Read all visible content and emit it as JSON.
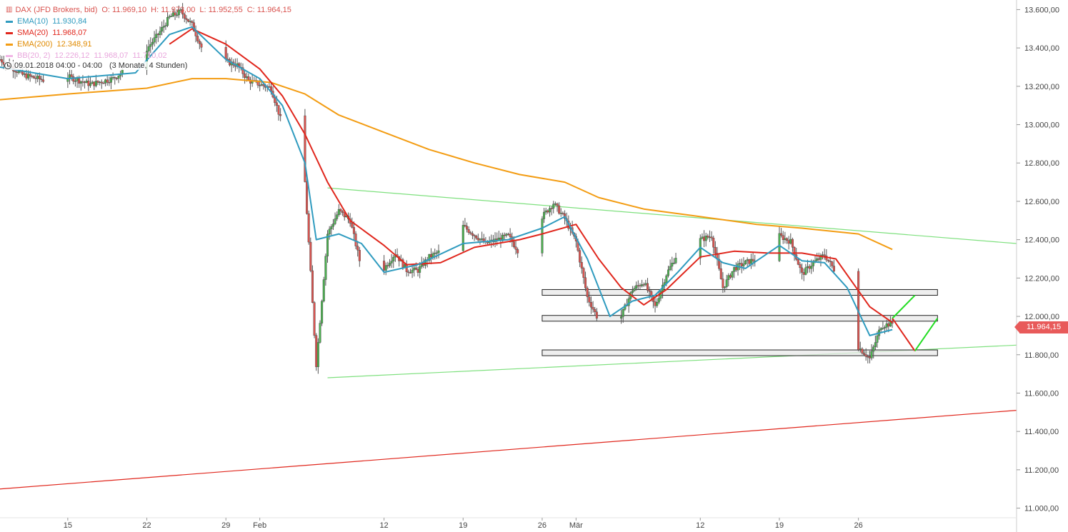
{
  "header": {
    "title": "DAX (JFD Brokers, bid)",
    "open": "O: 11.969,10",
    "high": "H: 11.973,00",
    "low": "L: 11.952,55",
    "close": "C: 11.964,15"
  },
  "indicators": [
    {
      "label": "EMA(10)",
      "value": "11.930,84",
      "color": "#2f9bbf"
    },
    {
      "label": "SMA(20)",
      "value": "11.968,07",
      "color": "#e0261c"
    },
    {
      "label": "EMA(200)",
      "value": "12.348,91",
      "color": "#f39c12"
    },
    {
      "label": "BB(20, 2)",
      "value": "12.226,12",
      "value2": "11.968,07",
      "value3": "11.710,02",
      "color": "#f2b6e6"
    }
  ],
  "period": {
    "date": "09.01.2018 04:00 - 04:00",
    "range": "(3 Monate, 4 Stunden)"
  },
  "current_price": "11.964,15",
  "chart_data": {
    "type": "candlestick",
    "y_axis": {
      "ylim": [
        10950,
        13650
      ],
      "ticks": [
        11000,
        11200,
        11400,
        11600,
        11800,
        12000,
        12200,
        12400,
        12600,
        12800,
        13000,
        13200,
        13400,
        13600
      ],
      "tick_labels": [
        "11.000,00",
        "11.200,00",
        "11.400,00",
        "11.600,00",
        "11.800,00",
        "12.000,00",
        "12.200,00",
        "12.400,00",
        "12.600,00",
        "12.800,00",
        "13.000,00",
        "13.200,00",
        "13.400,00",
        "13.600,00"
      ]
    },
    "x_axis": {
      "range": [
        "2018-01-09",
        "2018-04-09"
      ],
      "ticks": [
        "2018-01-15",
        "2018-01-22",
        "2018-01-29",
        "2018-02-01",
        "2018-02-12",
        "2018-02-19",
        "2018-02-26",
        "2018-03-01",
        "2018-03-12",
        "2018-03-19",
        "2018-03-26"
      ],
      "tick_labels": [
        "15",
        "22",
        "29",
        "Feb",
        "12",
        "19",
        "26",
        "Mär",
        "12",
        "19",
        "26"
      ]
    },
    "price_path": [
      [
        "2018-01-09",
        13340
      ],
      [
        "2018-01-11",
        13260
      ],
      [
        "2018-01-13",
        13230
      ],
      [
        "2018-01-15",
        13250
      ],
      [
        "2018-01-17",
        13210
      ],
      [
        "2018-01-19",
        13240
      ],
      [
        "2018-01-21",
        13320
      ],
      [
        "2018-01-23",
        13470
      ],
      [
        "2018-01-24",
        13560
      ],
      [
        "2018-01-25",
        13590
      ],
      [
        "2018-01-26",
        13520
      ],
      [
        "2018-01-27",
        13380
      ],
      [
        "2018-01-29",
        13330
      ],
      [
        "2018-01-30",
        13310
      ],
      [
        "2018-01-31",
        13230
      ],
      [
        "2018-02-01",
        13210
      ],
      [
        "2018-02-02",
        13190
      ],
      [
        "2018-02-03",
        13000
      ],
      [
        "2018-02-04",
        12850
      ],
      [
        "2018-02-05",
        12700
      ],
      [
        "2018-02-06",
        11750
      ],
      [
        "2018-02-07",
        12430
      ],
      [
        "2018-02-08",
        12550
      ],
      [
        "2018-02-09",
        12500
      ],
      [
        "2018-02-10",
        12250
      ],
      [
        "2018-02-11",
        12100
      ],
      [
        "2018-02-12",
        12250
      ],
      [
        "2018-02-13",
        12330
      ],
      [
        "2018-02-14",
        12240
      ],
      [
        "2018-02-15",
        12240
      ],
      [
        "2018-02-16",
        12310
      ],
      [
        "2018-02-17",
        12340
      ],
      [
        "2018-02-19",
        12470
      ],
      [
        "2018-02-21",
        12380
      ],
      [
        "2018-02-23",
        12420
      ],
      [
        "2018-02-24",
        12330
      ],
      [
        "2018-02-26",
        12520
      ],
      [
        "2018-02-27",
        12590
      ],
      [
        "2018-02-28",
        12510
      ],
      [
        "2018-03-01",
        12390
      ],
      [
        "2018-03-02",
        12100
      ],
      [
        "2018-03-03",
        11980
      ],
      [
        "2018-03-04",
        11950
      ],
      [
        "2018-03-05",
        12000
      ],
      [
        "2018-03-06",
        12140
      ],
      [
        "2018-03-07",
        12180
      ],
      [
        "2018-03-08",
        12050
      ],
      [
        "2018-03-09",
        12220
      ],
      [
        "2018-03-10",
        12330
      ],
      [
        "2018-03-11",
        12400
      ],
      [
        "2018-03-12",
        12400
      ],
      [
        "2018-03-13",
        12420
      ],
      [
        "2018-03-14",
        12150
      ],
      [
        "2018-03-15",
        12250
      ],
      [
        "2018-03-16",
        12280
      ],
      [
        "2018-03-17",
        12300
      ],
      [
        "2018-03-18",
        12390
      ],
      [
        "2018-03-19",
        12420
      ],
      [
        "2018-03-20",
        12390
      ],
      [
        "2018-03-21",
        12220
      ],
      [
        "2018-03-22",
        12280
      ],
      [
        "2018-03-23",
        12320
      ],
      [
        "2018-03-24",
        12230
      ],
      [
        "2018-03-25",
        12080
      ],
      [
        "2018-03-26",
        11840
      ],
      [
        "2018-03-27",
        11780
      ],
      [
        "2018-03-28",
        11950
      ],
      [
        "2018-03-29",
        11964
      ]
    ],
    "ema10": [
      [
        "2018-01-09",
        13300
      ],
      [
        "2018-01-15",
        13240
      ],
      [
        "2018-01-21",
        13270
      ],
      [
        "2018-01-24",
        13470
      ],
      [
        "2018-01-26",
        13510
      ],
      [
        "2018-01-29",
        13340
      ],
      [
        "2018-02-01",
        13240
      ],
      [
        "2018-02-03",
        13100
      ],
      [
        "2018-02-05",
        12800
      ],
      [
        "2018-02-06",
        12400
      ],
      [
        "2018-02-08",
        12430
      ],
      [
        "2018-02-10",
        12380
      ],
      [
        "2018-02-12",
        12230
      ],
      [
        "2018-02-15",
        12270
      ],
      [
        "2018-02-19",
        12380
      ],
      [
        "2018-02-23",
        12400
      ],
      [
        "2018-02-26",
        12460
      ],
      [
        "2018-02-28",
        12520
      ],
      [
        "2018-03-02",
        12300
      ],
      [
        "2018-03-04",
        12000
      ],
      [
        "2018-03-06",
        12080
      ],
      [
        "2018-03-08",
        12110
      ],
      [
        "2018-03-10",
        12230
      ],
      [
        "2018-03-12",
        12360
      ],
      [
        "2018-03-14",
        12280
      ],
      [
        "2018-03-16",
        12250
      ],
      [
        "2018-03-19",
        12370
      ],
      [
        "2018-03-21",
        12290
      ],
      [
        "2018-03-23",
        12280
      ],
      [
        "2018-03-25",
        12150
      ],
      [
        "2018-03-27",
        11900
      ],
      [
        "2018-03-29",
        11931
      ]
    ],
    "sma20": [
      [
        "2018-01-24",
        13420
      ],
      [
        "2018-01-26",
        13500
      ],
      [
        "2018-01-29",
        13420
      ],
      [
        "2018-02-01",
        13290
      ],
      [
        "2018-02-03",
        13150
      ],
      [
        "2018-02-05",
        12950
      ],
      [
        "2018-02-07",
        12700
      ],
      [
        "2018-02-09",
        12500
      ],
      [
        "2018-02-12",
        12370
      ],
      [
        "2018-02-14",
        12270
      ],
      [
        "2018-02-17",
        12280
      ],
      [
        "2018-02-20",
        12360
      ],
      [
        "2018-02-24",
        12400
      ],
      [
        "2018-02-26",
        12430
      ],
      [
        "2018-03-01",
        12480
      ],
      [
        "2018-03-03",
        12300
      ],
      [
        "2018-03-05",
        12150
      ],
      [
        "2018-03-07",
        12060
      ],
      [
        "2018-03-09",
        12140
      ],
      [
        "2018-03-12",
        12310
      ],
      [
        "2018-03-15",
        12340
      ],
      [
        "2018-03-18",
        12330
      ],
      [
        "2018-03-21",
        12330
      ],
      [
        "2018-03-24",
        12300
      ],
      [
        "2018-03-27",
        12050
      ],
      [
        "2018-03-29",
        11968
      ]
    ],
    "ema200": [
      [
        "2018-01-09",
        13130
      ],
      [
        "2018-01-15",
        13160
      ],
      [
        "2018-01-22",
        13190
      ],
      [
        "2018-01-26",
        13240
      ],
      [
        "2018-01-29",
        13240
      ],
      [
        "2018-02-02",
        13220
      ],
      [
        "2018-02-05",
        13160
      ],
      [
        "2018-02-08",
        13050
      ],
      [
        "2018-02-12",
        12960
      ],
      [
        "2018-02-16",
        12870
      ],
      [
        "2018-02-20",
        12800
      ],
      [
        "2018-02-24",
        12740
      ],
      [
        "2018-02-28",
        12700
      ],
      [
        "2018-03-03",
        12620
      ],
      [
        "2018-03-07",
        12560
      ],
      [
        "2018-03-12",
        12520
      ],
      [
        "2018-03-17",
        12480
      ],
      [
        "2018-03-21",
        12460
      ],
      [
        "2018-03-26",
        12430
      ],
      [
        "2018-03-29",
        12349
      ]
    ],
    "trendlines": [
      {
        "color": "#7ee07e",
        "points": [
          [
            "2018-02-07",
            12670
          ],
          [
            "2018-04-09",
            12380
          ]
        ]
      },
      {
        "color": "#7ee07e",
        "points": [
          [
            "2018-02-07",
            11680
          ],
          [
            "2018-04-09",
            11850
          ]
        ]
      },
      {
        "color": "#e0261c",
        "points": [
          [
            "2018-01-09",
            11100
          ],
          [
            "2018-04-09",
            11510
          ]
        ]
      }
    ],
    "zones": [
      {
        "from": 12110,
        "to": 12140,
        "x": [
          "2018-02-26",
          "2018-04-02"
        ]
      },
      {
        "from": 11975,
        "to": 12005,
        "x": [
          "2018-02-26",
          "2018-04-02"
        ]
      },
      {
        "from": 11795,
        "to": 11825,
        "x": [
          "2018-02-26",
          "2018-04-02"
        ]
      }
    ],
    "arrows": [
      {
        "color": "#e0261c",
        "points": [
          [
            "2018-03-29",
            11990
          ],
          [
            "2018-03-31",
            11820
          ]
        ]
      },
      {
        "color": "#22dd22",
        "points": [
          [
            "2018-03-31",
            11820
          ],
          [
            "2018-04-02",
            11990
          ]
        ]
      },
      {
        "color": "#22dd22",
        "points": [
          [
            "2018-03-29",
            11990
          ],
          [
            "2018-03-31",
            12110
          ]
        ]
      }
    ]
  }
}
